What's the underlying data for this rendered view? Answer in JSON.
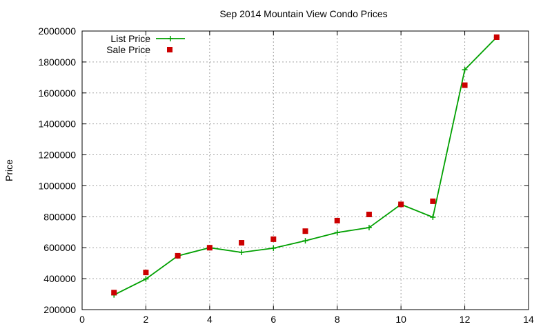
{
  "chart_data": {
    "type": "line",
    "title": "Sep 2014 Mountain View Condo Prices",
    "xlabel": "",
    "ylabel": "Price",
    "xlim": [
      0,
      14
    ],
    "ylim": [
      200000,
      2000000
    ],
    "xticks": [
      0,
      2,
      4,
      6,
      8,
      10,
      12,
      14
    ],
    "yticks": [
      200000,
      400000,
      600000,
      800000,
      1000000,
      1200000,
      1400000,
      1600000,
      1800000,
      2000000
    ],
    "grid": true,
    "legend_position": "top-left",
    "series": [
      {
        "name": "List Price",
        "style": "line+cross",
        "color": "#00a000",
        "x": [
          1,
          2,
          3,
          4,
          5,
          6,
          7,
          8,
          9,
          10,
          11,
          12,
          13
        ],
        "y": [
          295000,
          398000,
          547000,
          600000,
          570000,
          597000,
          645000,
          698000,
          730000,
          880000,
          797000,
          1750000,
          1960000
        ]
      },
      {
        "name": "Sale Price",
        "style": "square",
        "color": "#cc0000",
        "x": [
          1,
          2,
          3,
          4,
          5,
          6,
          7,
          8,
          9,
          10,
          11,
          12,
          13
        ],
        "y": [
          310000,
          440000,
          548000,
          600000,
          632000,
          655000,
          707000,
          775000,
          815000,
          880000,
          900000,
          1650000,
          1960000
        ]
      }
    ]
  }
}
